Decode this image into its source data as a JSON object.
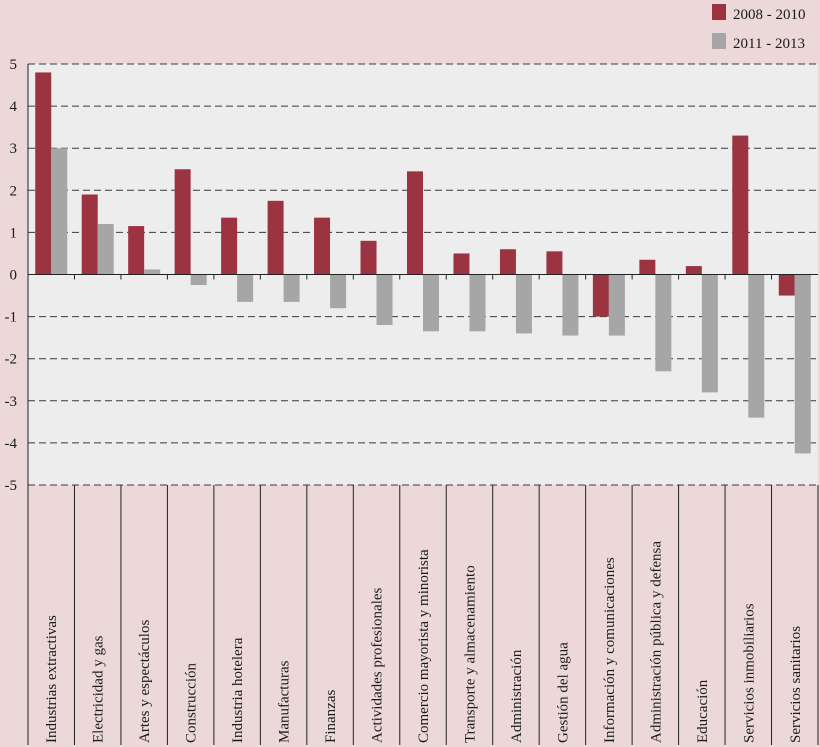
{
  "chart_data": {
    "type": "bar",
    "title": "",
    "xlabel": "",
    "ylabel": "",
    "ylim": [
      -5,
      5
    ],
    "yticks": [
      5,
      4,
      3,
      2,
      1,
      0,
      -1,
      -2,
      -3,
      -4,
      -5
    ],
    "grid": "horizontal dashed",
    "legend_position": "top-right",
    "categories": [
      "Industrias extractivas",
      "Electricidad y gas",
      "Artes y espectáculos",
      "Construcción",
      "Industria hotelera",
      "Manufacturas",
      "Finanzas",
      "Actividades profesionales",
      "Comercio mayorista y minorista",
      "Transporte y almacenamiento",
      "Administración",
      "Gestión del agua",
      "Información y comunicaciones",
      "Administración pública y defensa",
      "Educación",
      "Servicios inmobiliarios",
      "Servicios sanitarios"
    ],
    "series": [
      {
        "name": "2008 - 2010",
        "color": "#9b3341",
        "values": [
          4.8,
          1.9,
          1.15,
          2.5,
          1.35,
          1.75,
          1.35,
          0.8,
          2.45,
          0.5,
          0.6,
          0.55,
          -1.0,
          0.35,
          0.2,
          3.3,
          -0.5
        ]
      },
      {
        "name": "2011 - 2013",
        "color": "#a6a6a6",
        "values": [
          3.0,
          1.2,
          0.12,
          -0.25,
          -0.65,
          -0.65,
          -0.8,
          -1.2,
          -1.35,
          -1.35,
          -1.4,
          -1.45,
          -1.45,
          -2.3,
          -2.8,
          -3.4,
          -4.25
        ]
      }
    ]
  }
}
